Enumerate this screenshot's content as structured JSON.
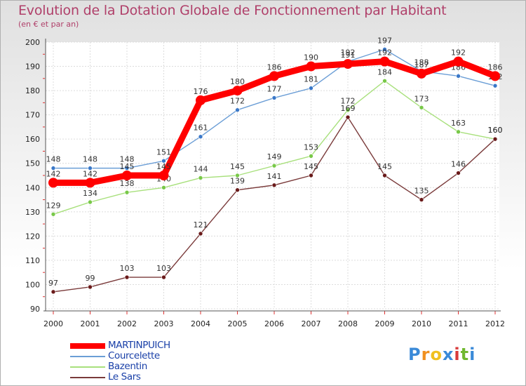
{
  "chart_data": {
    "type": "line",
    "title": "Evolution de la Dotation Globale de Fonctionnement par Habitant",
    "subtitle": "(en € et par an)",
    "categories": [
      "2000",
      "2001",
      "2002",
      "2003",
      "2004",
      "2005",
      "2006",
      "2007",
      "2008",
      "2009",
      "2010",
      "2011",
      "2012"
    ],
    "ylim": [
      90,
      200
    ],
    "yticks": [
      "90",
      "100",
      "110",
      "120",
      "130",
      "140",
      "150",
      "160",
      "170",
      "180",
      "190",
      "200"
    ],
    "series": [
      {
        "name": "MARTINPUICH",
        "color": "#ff0000",
        "emphasis": true,
        "values": [
          142,
          142,
          145,
          145,
          176,
          180,
          186,
          190,
          191,
          192,
          187,
          192,
          186
        ],
        "labels": [
          "142",
          "142",
          "145",
          "145",
          "176",
          "180",
          "186",
          "190",
          "191",
          "192",
          "187",
          "192",
          "186"
        ]
      },
      {
        "name": "Courcelette",
        "color": "#6b9ed6",
        "marker": "#3a78c8",
        "values": [
          148,
          148,
          148,
          151,
          161,
          172,
          177,
          181,
          192,
          197,
          188,
          186,
          182
        ],
        "labels": [
          "148",
          "148",
          "148",
          "151",
          "161",
          "172",
          "177",
          "181",
          "192",
          "197",
          "188",
          "186",
          "182"
        ]
      },
      {
        "name": "Bazentin",
        "color": "#a8e07c",
        "marker": "#78c848",
        "values": [
          129,
          134,
          138,
          140,
          144,
          145,
          149,
          153,
          172,
          184,
          173,
          163,
          160
        ],
        "labels": [
          "129",
          "134",
          "138",
          "140",
          "144",
          "145",
          "149",
          "153",
          "172",
          "184",
          "173",
          "163",
          "160"
        ]
      },
      {
        "name": "Le Sars",
        "color": "#7a3a3a",
        "marker": "#6a1a1a",
        "values": [
          97,
          99,
          103,
          103,
          121,
          139,
          141,
          145,
          169,
          145,
          135,
          146,
          160
        ],
        "labels": [
          "97",
          "99",
          "103",
          "103",
          "121",
          "139",
          "141",
          "145",
          "169",
          "145",
          "135",
          "146",
          "160"
        ]
      }
    ]
  },
  "logo": {
    "letters": [
      "P",
      "r",
      "o",
      "x",
      "i",
      "t",
      "i"
    ],
    "colors": [
      "#3a8ad8",
      "#f09020",
      "#f0c020",
      "#3a8ad8",
      "#d83a3a",
      "#70b830",
      "#3a8ad8"
    ]
  }
}
